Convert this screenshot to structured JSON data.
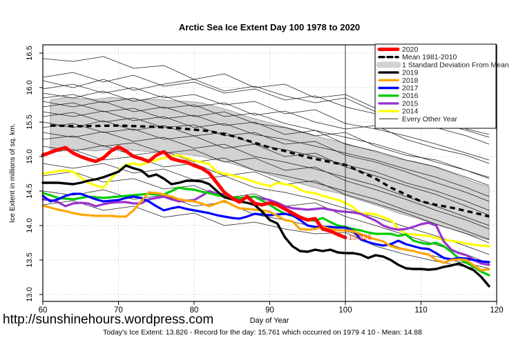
{
  "title": "Arctic Sea Ice Extent Day 100 1978 to 2020",
  "footer": {
    "url": "http://sunshinehours.wordpress.com",
    "stats": "Today's Ice Extent: 13.826  - Record for the day: 15.761 which occurred on 1979 4 10  - Mean: 14.88"
  },
  "annotation": {
    "text": "13.826",
    "day": 100.4,
    "value": 13.795,
    "color": "#FF3300"
  },
  "vline_day": 100,
  "legend": {
    "entries": [
      {
        "label": "2020",
        "color": "#FF0000",
        "lw": 5,
        "dash": ""
      },
      {
        "label": "Mean 1981-2010",
        "color": "#000000",
        "lw": 3.4,
        "dash": "7 5"
      },
      {
        "label": "1 Standard Deviation From Mean",
        "color": "#D2D2D2",
        "lw": 9,
        "dash": ""
      },
      {
        "label": "2019",
        "color": "#000000",
        "lw": 3.4,
        "dash": ""
      },
      {
        "label": "2018",
        "color": "#FFA500",
        "lw": 3.4,
        "dash": ""
      },
      {
        "label": "2017",
        "color": "#0000FF",
        "lw": 3.4,
        "dash": ""
      },
      {
        "label": "2016",
        "color": "#00CC00",
        "lw": 3.4,
        "dash": ""
      },
      {
        "label": "2015",
        "color": "#9933CC",
        "lw": 3.4,
        "dash": ""
      },
      {
        "label": "2014",
        "color": "#FFFF00",
        "lw": 3.4,
        "dash": ""
      },
      {
        "label": "Every Other Year",
        "color": "#222222",
        "lw": 1,
        "dash": ""
      }
    ]
  },
  "chart_data": {
    "type": "line",
    "title": "Arctic Sea Ice Extent Day 100 1978 to 2020",
    "xlabel": "Day of Year",
    "ylabel": "Ice Extent in millions of sq. km.",
    "xlim": [
      60,
      120
    ],
    "ylim": [
      12.9,
      16.62
    ],
    "grid": true,
    "legend_position": "top-right",
    "xticks": [
      60,
      70,
      80,
      90,
      100,
      110,
      120
    ],
    "xtick_labels": [
      "60",
      "70",
      "80",
      "90",
      "100",
      "110",
      "120"
    ],
    "yticks": [
      13.0,
      13.5,
      14.0,
      14.5,
      15.0,
      15.5,
      16.0,
      16.5
    ],
    "ytick_labels": [
      "13.0",
      "13.5",
      "14.0",
      "14.5",
      "15.0",
      "15.5",
      "16.0",
      "16.5"
    ],
    "band": {
      "name": "1 Standard Deviation From Mean",
      "fill": "#D2D2D2",
      "days": [
        61,
        63,
        65,
        67,
        69,
        71,
        73,
        75,
        77,
        79,
        81,
        83,
        85,
        87,
        89,
        91,
        93,
        95,
        97,
        99,
        101,
        103,
        105,
        107,
        109,
        111,
        113,
        115,
        117,
        119
      ],
      "upper": [
        15.82,
        15.86,
        15.84,
        15.83,
        15.86,
        15.84,
        15.82,
        15.83,
        15.81,
        15.8,
        15.78,
        15.72,
        15.66,
        15.58,
        15.52,
        15.46,
        15.4,
        15.34,
        15.27,
        15.22,
        15.16,
        15.1,
        15.03,
        14.97,
        14.93,
        14.88,
        14.8,
        14.72,
        14.63,
        14.56
      ],
      "lower": [
        15.1,
        15.12,
        15.1,
        15.08,
        15.11,
        15.1,
        15.08,
        15.07,
        15.05,
        15.03,
        15.0,
        14.95,
        14.9,
        14.83,
        14.77,
        14.7,
        14.64,
        14.58,
        14.52,
        14.47,
        14.4,
        14.33,
        14.26,
        14.18,
        14.12,
        14.05,
        13.98,
        13.92,
        13.85,
        13.79
      ]
    },
    "mean": {
      "name": "Mean 1981-2010",
      "color": "#000000",
      "style": "dashed",
      "days": [
        61,
        65,
        70,
        75,
        78,
        80,
        82,
        85,
        88,
        90,
        92,
        95,
        98,
        100,
        102,
        104,
        106,
        108,
        110,
        112,
        114,
        116,
        118,
        119
      ],
      "values": [
        15.45,
        15.44,
        15.45,
        15.43,
        15.41,
        15.39,
        15.37,
        15.3,
        15.2,
        15.13,
        15.08,
        14.99,
        14.92,
        14.88,
        14.78,
        14.68,
        14.55,
        14.45,
        14.35,
        14.3,
        14.26,
        14.21,
        14.16,
        14.13
      ]
    },
    "series": [
      {
        "name": "2014",
        "color": "#FFFF00",
        "width": 3.2,
        "day_start": 60,
        "values": [
          14.75,
          14.77,
          14.79,
          14.8,
          14.78,
          14.7,
          14.62,
          14.58,
          14.55,
          14.68,
          14.8,
          14.88,
          14.9,
          14.88,
          14.92,
          14.95,
          14.98,
          15.0,
          15.02,
          14.98,
          14.94,
          14.92,
          14.89,
          14.78,
          14.75,
          14.73,
          14.7,
          14.67,
          14.63,
          14.6,
          14.57,
          14.62,
          14.6,
          14.58,
          14.52,
          14.48,
          14.47,
          14.43,
          14.4,
          14.37,
          14.33,
          14.27,
          14.17,
          14.18,
          14.16,
          14.12,
          14.08,
          13.95,
          13.88,
          13.87,
          13.86,
          13.85,
          13.82,
          13.79,
          13.78,
          13.76,
          13.74,
          13.72,
          13.71,
          13.7
        ]
      },
      {
        "name": "2015",
        "color": "#9933CC",
        "width": 3.2,
        "day_start": 60,
        "values": [
          14.38,
          14.37,
          14.34,
          14.28,
          14.32,
          14.33,
          14.32,
          14.28,
          14.31,
          14.33,
          14.34,
          14.34,
          14.32,
          14.32,
          14.38,
          14.4,
          14.42,
          14.38,
          14.35,
          14.36,
          14.37,
          14.43,
          14.5,
          14.46,
          14.45,
          14.41,
          14.38,
          14.4,
          14.42,
          14.39,
          14.37,
          14.33,
          14.28,
          14.25,
          14.24,
          14.23,
          14.24,
          14.25,
          14.23,
          14.21,
          14.2,
          14.19,
          14.17,
          14.12,
          14.07,
          14.0,
          13.96,
          13.94,
          13.95,
          13.98,
          14.02,
          14.04,
          14.0,
          13.77,
          13.65,
          13.6,
          13.57,
          13.5,
          13.45,
          13.43
        ]
      },
      {
        "name": "2016",
        "color": "#00CC00",
        "width": 3.2,
        "day_start": 60,
        "values": [
          14.47,
          14.44,
          14.4,
          14.39,
          14.38,
          14.4,
          14.42,
          14.41,
          14.4,
          14.41,
          14.42,
          14.43,
          14.44,
          14.45,
          14.46,
          14.45,
          14.45,
          14.5,
          14.55,
          14.53,
          14.52,
          14.49,
          14.47,
          14.44,
          14.42,
          14.41,
          14.4,
          14.41,
          14.42,
          14.36,
          14.3,
          14.23,
          14.17,
          14.14,
          14.12,
          14.09,
          14.07,
          14.11,
          14.05,
          14.0,
          13.98,
          13.95,
          13.93,
          13.9,
          13.88,
          13.88,
          13.88,
          13.85,
          13.87,
          13.78,
          13.75,
          13.73,
          13.75,
          13.7,
          13.62,
          13.52,
          13.46,
          13.4,
          13.33,
          13.28
        ]
      },
      {
        "name": "2017",
        "color": "#0000FF",
        "width": 3.2,
        "day_start": 60,
        "values": [
          14.43,
          14.35,
          14.38,
          14.43,
          14.46,
          14.46,
          14.42,
          14.38,
          14.35,
          14.36,
          14.37,
          14.4,
          14.42,
          14.4,
          14.35,
          14.28,
          14.22,
          14.25,
          14.27,
          14.24,
          14.22,
          14.2,
          14.18,
          14.15,
          14.13,
          14.11,
          14.1,
          14.13,
          14.17,
          14.16,
          14.15,
          14.16,
          14.17,
          14.15,
          14.08,
          14.0,
          13.98,
          13.98,
          13.98,
          13.97,
          13.97,
          13.93,
          13.8,
          13.76,
          13.73,
          13.71,
          13.73,
          13.78,
          13.73,
          13.7,
          13.67,
          13.66,
          13.6,
          13.53,
          13.51,
          13.53,
          13.52,
          13.5,
          13.48,
          13.47
        ]
      },
      {
        "name": "2018",
        "color": "#FFA500",
        "width": 3.2,
        "day_start": 60,
        "values": [
          14.29,
          14.26,
          14.23,
          14.21,
          14.18,
          14.16,
          14.15,
          14.14,
          14.14,
          14.14,
          14.13,
          14.13,
          14.22,
          14.35,
          14.48,
          14.47,
          14.45,
          14.42,
          14.38,
          14.36,
          14.35,
          14.32,
          14.28,
          14.32,
          14.36,
          14.3,
          14.25,
          14.24,
          14.23,
          14.22,
          14.2,
          14.14,
          14.08,
          14.06,
          13.95,
          13.94,
          13.95,
          13.98,
          13.95,
          13.93,
          13.93,
          13.92,
          13.88,
          13.83,
          13.8,
          13.77,
          13.7,
          13.67,
          13.65,
          13.63,
          13.6,
          13.58,
          13.5,
          13.46,
          13.5,
          13.51,
          13.5,
          13.42,
          13.35,
          13.37
        ]
      },
      {
        "name": "2019",
        "color": "#000000",
        "width": 3.4,
        "day_start": 60,
        "values": [
          14.62,
          14.62,
          14.62,
          14.61,
          14.6,
          14.62,
          14.65,
          14.67,
          14.7,
          14.74,
          14.78,
          14.87,
          14.83,
          14.8,
          14.71,
          14.74,
          14.68,
          14.6,
          14.62,
          14.65,
          14.65,
          14.64,
          14.6,
          14.5,
          14.41,
          14.38,
          14.35,
          14.33,
          14.3,
          14.2,
          14.08,
          14.03,
          13.83,
          13.7,
          13.63,
          13.62,
          13.65,
          13.63,
          13.65,
          13.61,
          13.6,
          13.6,
          13.58,
          13.53,
          13.57,
          13.55,
          13.5,
          13.43,
          13.38,
          13.37,
          13.37,
          13.36,
          13.37,
          13.4,
          13.42,
          13.45,
          13.4,
          13.35,
          13.25,
          13.12
        ]
      },
      {
        "name": "2020",
        "color": "#FF0000",
        "width": 5,
        "day_start": 60,
        "values": [
          15.02,
          15.06,
          15.1,
          15.13,
          15.05,
          15.0,
          14.96,
          14.93,
          14.98,
          15.08,
          15.14,
          15.08,
          15.0,
          14.97,
          14.93,
          15.02,
          15.07,
          14.97,
          14.94,
          14.92,
          14.87,
          14.83,
          14.76,
          14.62,
          14.48,
          14.4,
          14.34,
          14.42,
          14.32,
          14.3,
          14.33,
          14.3,
          14.24,
          14.18,
          14.12,
          14.08,
          14.1,
          13.95,
          13.92,
          13.87,
          13.826
        ]
      }
    ],
    "other_years": {
      "name": "Every Other Year",
      "color": "#1c1c1c",
      "width": 0.75,
      "days": [
        60,
        64,
        68,
        72,
        76,
        80,
        84,
        88,
        92,
        96,
        100,
        104,
        108,
        112,
        116,
        119
      ],
      "lines": [
        [
          16.42,
          16.38,
          16.45,
          16.28,
          16.32,
          16.12,
          16.2,
          16.0,
          16.05,
          15.85,
          15.9,
          15.7,
          15.62,
          15.5,
          15.38,
          15.28
        ],
        [
          16.15,
          16.22,
          16.08,
          16.18,
          16.02,
          16.08,
          15.92,
          15.98,
          15.82,
          15.88,
          15.72,
          15.62,
          15.55,
          15.42,
          15.3,
          15.18
        ],
        [
          16.1,
          16.0,
          16.12,
          15.96,
          16.05,
          16.12,
          15.95,
          16.02,
          15.88,
          15.78,
          15.85,
          15.65,
          15.55,
          15.6,
          15.4,
          15.32
        ],
        [
          15.98,
          16.05,
          15.92,
          16.0,
          15.85,
          15.9,
          15.75,
          15.8,
          15.62,
          15.68,
          15.48,
          15.4,
          15.3,
          15.18,
          15.05,
          14.95
        ],
        [
          15.92,
          15.85,
          15.95,
          15.8,
          15.88,
          15.72,
          15.78,
          15.6,
          15.66,
          15.5,
          15.4,
          15.45,
          15.25,
          15.12,
          15.02,
          14.9
        ],
        [
          15.85,
          15.9,
          15.78,
          15.85,
          15.7,
          15.75,
          15.58,
          15.63,
          15.48,
          15.38,
          15.28,
          15.18,
          15.05,
          14.92,
          14.8,
          14.68
        ],
        [
          15.8,
          15.72,
          15.8,
          15.65,
          15.72,
          15.58,
          15.65,
          15.48,
          15.42,
          15.3,
          15.35,
          15.15,
          15.02,
          14.95,
          14.8,
          14.7
        ],
        [
          15.72,
          15.78,
          15.65,
          15.7,
          15.55,
          15.6,
          15.45,
          15.5,
          15.32,
          15.38,
          15.18,
          15.08,
          14.95,
          14.85,
          14.7,
          14.58
        ],
        [
          15.65,
          15.58,
          15.66,
          15.52,
          15.58,
          15.42,
          15.48,
          15.32,
          15.25,
          15.15,
          15.05,
          14.95,
          14.82,
          14.7,
          14.55,
          14.42
        ],
        [
          15.58,
          15.64,
          15.5,
          15.56,
          15.42,
          15.46,
          15.3,
          15.35,
          15.18,
          15.22,
          15.02,
          14.92,
          14.78,
          14.62,
          14.48,
          14.35
        ],
        [
          15.5,
          15.42,
          15.52,
          15.38,
          15.45,
          15.3,
          15.35,
          15.18,
          15.1,
          15.0,
          14.88,
          14.78,
          14.62,
          14.5,
          14.35,
          14.22
        ],
        [
          15.42,
          15.48,
          15.35,
          15.4,
          15.25,
          15.3,
          15.12,
          15.18,
          15.0,
          15.05,
          14.85,
          14.72,
          14.58,
          14.45,
          14.28,
          14.15
        ],
        [
          15.35,
          15.28,
          15.36,
          15.22,
          15.28,
          15.12,
          15.18,
          15.0,
          14.92,
          14.82,
          14.7,
          14.58,
          14.42,
          14.28,
          14.12,
          14.0
        ],
        [
          15.25,
          15.3,
          15.15,
          15.2,
          15.05,
          15.1,
          14.92,
          14.98,
          14.8,
          14.85,
          14.65,
          14.52,
          14.38,
          14.22,
          14.08,
          13.95
        ],
        [
          15.15,
          15.08,
          15.16,
          15.02,
          15.08,
          14.92,
          14.98,
          14.8,
          14.72,
          14.62,
          14.5,
          14.38,
          14.22,
          14.08,
          13.92,
          13.8
        ],
        [
          15.05,
          15.1,
          14.95,
          15.0,
          14.85,
          14.9,
          14.72,
          14.78,
          14.6,
          14.65,
          14.45,
          14.32,
          14.18,
          14.02,
          13.88,
          13.75
        ],
        [
          14.9,
          14.83,
          14.9,
          14.76,
          14.82,
          14.66,
          14.72,
          14.55,
          14.48,
          14.38,
          14.25,
          14.12,
          13.98,
          13.85,
          13.7,
          13.58
        ],
        [
          14.72,
          14.78,
          14.63,
          14.68,
          14.53,
          14.58,
          14.4,
          14.46,
          14.28,
          14.33,
          14.13,
          14.0,
          13.86,
          13.72,
          13.58,
          13.45
        ],
        [
          14.5,
          14.44,
          14.52,
          14.38,
          14.44,
          14.28,
          14.34,
          14.16,
          14.08,
          13.98,
          13.92,
          13.8,
          13.65,
          13.55,
          13.45,
          13.38
        ],
        [
          14.3,
          14.36,
          14.22,
          14.28,
          14.12,
          14.18,
          14.0,
          14.05,
          13.95,
          13.88,
          13.9,
          13.7,
          13.58,
          13.48,
          13.4,
          13.35
        ]
      ]
    }
  }
}
